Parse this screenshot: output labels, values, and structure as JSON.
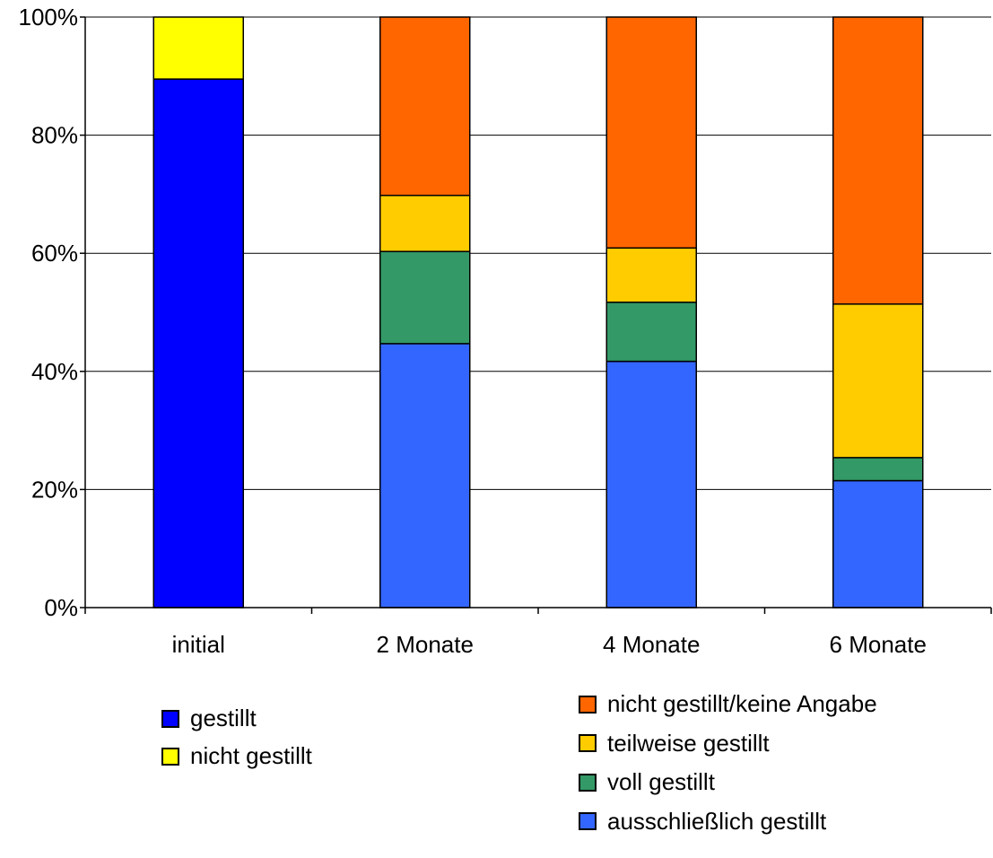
{
  "chart_data": {
    "type": "bar",
    "stacked": true,
    "percent": true,
    "categories": [
      "initial",
      "2 Monate",
      "4 Monate",
      "6 Monate"
    ],
    "ylim": [
      0,
      100
    ],
    "yticks": [
      0,
      20,
      40,
      60,
      80,
      100
    ],
    "ytick_labels": [
      "0%",
      "20%",
      "40%",
      "60%",
      "80%",
      "100%"
    ],
    "grid": true,
    "series": [
      {
        "name": "gestillt",
        "color": "#0000FF",
        "values": [
          89.5,
          0,
          0,
          0
        ]
      },
      {
        "name": "nicht gestillt",
        "color": "#FFFF00",
        "values": [
          10.5,
          0,
          0,
          0
        ]
      },
      {
        "name": "ausschließlich gestillt",
        "color": "#3366FF",
        "values": [
          0,
          44.7,
          41.7,
          21.5
        ]
      },
      {
        "name": "voll gestillt",
        "color": "#339966",
        "values": [
          0,
          15.6,
          10,
          3.9
        ]
      },
      {
        "name": "teilweise gestillt",
        "color": "#FFCC00",
        "values": [
          0,
          9.5,
          9.2,
          26
        ]
      },
      {
        "name": "nicht gestillt/keine Angabe",
        "color": "#FF6600",
        "values": [
          0,
          30.2,
          39.1,
          48.6
        ]
      }
    ],
    "legend_groups": [
      [
        "gestillt",
        "nicht gestillt"
      ],
      [
        "nicht gestillt/keine Angabe",
        "teilweise gestillt",
        "voll gestillt",
        "ausschließlich gestillt"
      ]
    ]
  }
}
